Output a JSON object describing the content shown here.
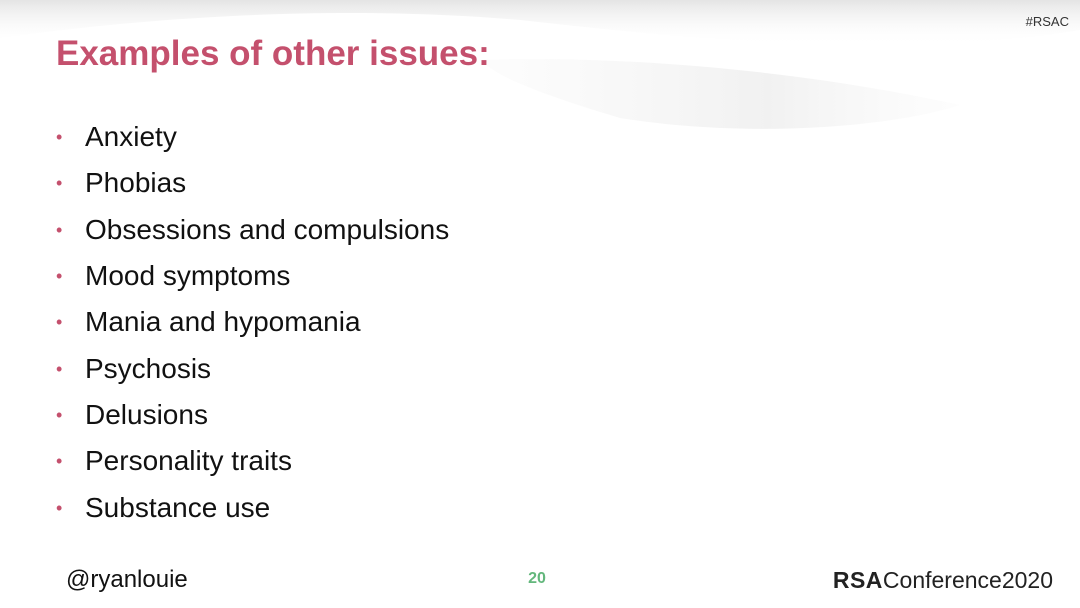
{
  "header": {
    "hashtag": "#RSAC"
  },
  "slide": {
    "title": "Examples of other issues:",
    "bullets": [
      "Anxiety",
      "Phobias",
      "Obsessions and compulsions",
      "Mood symptoms",
      "Mania and hypomania",
      "Psychosis",
      "Delusions",
      "Personality traits",
      "Substance use"
    ]
  },
  "footer": {
    "handle": "@ryanlouie",
    "page_number": "20",
    "logo_rsa": "RSA",
    "logo_conference": "Conference2020"
  },
  "colors": {
    "accent": "#c4506d",
    "page_number": "#63b77c"
  },
  "icons": {
    "bullet": "bullet-dot-icon"
  }
}
